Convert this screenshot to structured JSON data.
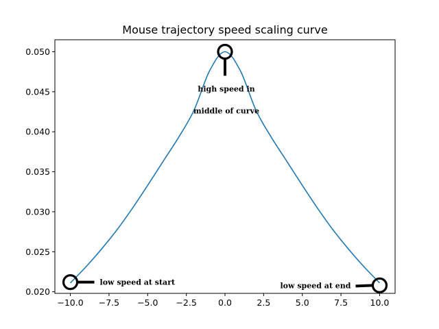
{
  "chart_data": {
    "type": "line",
    "title": "Mouse trajectory speed scaling curve",
    "xlabel": "",
    "ylabel": "",
    "xlim": [
      -11,
      11
    ],
    "ylim": [
      0.0198,
      0.0515
    ],
    "x_ticks": [
      -10,
      -7.5,
      -5,
      -2.5,
      0,
      2.5,
      5,
      7.5,
      10
    ],
    "x_tick_labels": [
      "−10.0",
      "−7.5",
      "−5.0",
      "−2.5",
      "0.0",
      "2.5",
      "5.0",
      "7.5",
      "10.0"
    ],
    "y_ticks": [
      0.02,
      0.025,
      0.03,
      0.035,
      0.04,
      0.045,
      0.05
    ],
    "y_tick_labels": [
      "0.020",
      "0.025",
      "0.030",
      "0.035",
      "0.040",
      "0.045",
      "0.050"
    ],
    "grid": false,
    "series": [
      {
        "color": "#1f77b4",
        "x": [
          -10,
          -9,
          -8,
          -7,
          -6,
          -5,
          -4,
          -3,
          -2,
          -1,
          0,
          1,
          2,
          3,
          4,
          5,
          6,
          7,
          8,
          9,
          10
        ],
        "y": [
          0.0211,
          0.0231,
          0.0253,
          0.0277,
          0.0304,
          0.0333,
          0.0363,
          0.0393,
          0.0427,
          0.0476,
          0.05,
          0.0476,
          0.0427,
          0.0393,
          0.0363,
          0.0333,
          0.0304,
          0.0277,
          0.0253,
          0.0231,
          0.0211
        ]
      }
    ],
    "annotations": [
      {
        "x": -10,
        "y": 0.0212,
        "lines": [
          "low speed at start"
        ]
      },
      {
        "x": 0,
        "y": 0.05,
        "lines": [
          "high speed in",
          "middle of curve"
        ]
      },
      {
        "x": 10,
        "y": 0.0208,
        "lines": [
          "low speed at end"
        ]
      }
    ]
  }
}
